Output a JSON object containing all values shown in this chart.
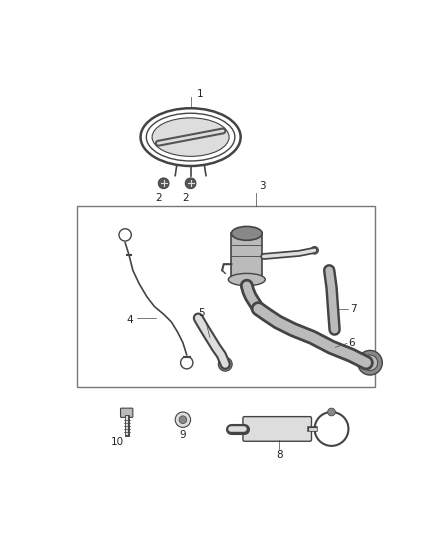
{
  "bg_color": "#ffffff",
  "line_color": "#444444",
  "label_color": "#222222",
  "gray_dark": "#555555",
  "gray_mid": "#888888",
  "gray_light": "#bbbbbb",
  "gray_lighter": "#dddddd",
  "fs": 7.5
}
